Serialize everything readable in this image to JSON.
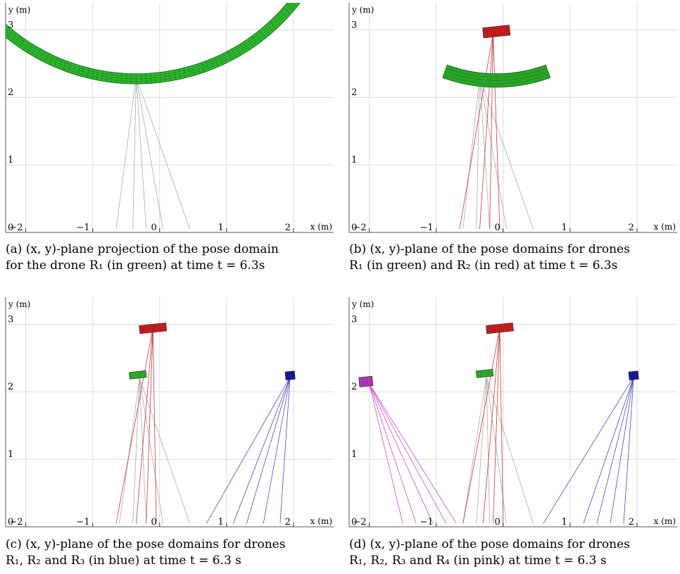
{
  "figure": {
    "panels": [
      {
        "id": "a",
        "caption_line1": "(a) (x, y)-plane projection of the pose domain",
        "caption_line2": "for the drone R₁ (in green) at time t = 6.3s"
      },
      {
        "id": "b",
        "caption_line1": "(b) (x, y)-plane of the pose domains for drones",
        "caption_line2": "R₁ (in green) and R₂ (in red) at time t = 6.3s"
      },
      {
        "id": "c",
        "caption_line1": "(c) (x, y)-plane of the pose domains for drones",
        "caption_line2": "R₁, R₂ and R₃ (in blue) at time t = 6.3 s"
      },
      {
        "id": "d",
        "caption_line1": "(d) (x, y)-plane of the pose domains for drones",
        "caption_line2": "R₁, R₂, R₃ and R₄ (in pink) at time t = 6.3 s"
      }
    ]
  },
  "chart_data": [
    {
      "type": "scatter",
      "panel": "a",
      "xlabel": "x (m)",
      "ylabel": "y (m)",
      "xlim": [
        -2.3,
        2.6
      ],
      "ylim": [
        0,
        3.4
      ],
      "x_ticks": [
        "−2",
        "−1",
        "0",
        "1",
        "2"
      ],
      "y_ticks": [
        "0",
        "1",
        "2",
        "3"
      ],
      "grid": true,
      "series": [
        {
          "name": "R1",
          "color": "#2fb82f",
          "shape": "arc",
          "center": [
            -0.35,
            5.3
          ],
          "radii": [
            2.95,
            3.1
          ],
          "angles_deg": [
            215,
            325
          ],
          "anchor": [
            -0.35,
            2.3
          ],
          "beam_targets": [
            [
              -0.65,
              0.05
            ],
            [
              -0.4,
              0.05
            ],
            [
              -0.2,
              0.05
            ],
            [
              0.05,
              0.05
            ],
            [
              0.45,
              0.05
            ]
          ],
          "beam_color": "#aaaaaa"
        }
      ]
    },
    {
      "type": "scatter",
      "panel": "b",
      "xlabel": "x (m)",
      "ylabel": "y (m)",
      "xlim": [
        -2.3,
        2.6
      ],
      "ylim": [
        0,
        3.4
      ],
      "x_ticks": [
        "−2",
        "−1",
        "0",
        "1",
        "2"
      ],
      "y_ticks": [
        "0",
        "1",
        "2",
        "3"
      ],
      "grid": true,
      "series": [
        {
          "name": "R1",
          "color": "#2fb82f",
          "shape": "arc",
          "center": [
            -0.1,
            4.5
          ],
          "radii": [
            2.15,
            2.35
          ],
          "angles_deg": [
            250,
            290
          ],
          "anchor": [
            -0.35,
            2.3
          ],
          "beam_targets": [
            [
              -0.6,
              0.05
            ],
            [
              -0.4,
              0.05
            ],
            [
              -0.2,
              0.05
            ],
            [
              0.05,
              0.05
            ],
            [
              0.45,
              0.05
            ]
          ],
          "beam_color": "#aaaaaa"
        },
        {
          "name": "R2",
          "color": "#d42020",
          "shape": "box",
          "x": [
            -0.3,
            0.1
          ],
          "y": [
            2.9,
            3.05
          ],
          "anchor": [
            -0.15,
            2.95
          ],
          "beam_targets": [
            [
              -0.65,
              0.05
            ],
            [
              -0.35,
              0.05
            ],
            [
              -0.2,
              0.05
            ],
            [
              -0.05,
              0.05
            ]
          ],
          "beam_color": "#c03a3a"
        }
      ]
    },
    {
      "type": "scatter",
      "panel": "c",
      "xlabel": "x (m)",
      "ylabel": "y (m)",
      "xlim": [
        -2.3,
        2.6
      ],
      "ylim": [
        0,
        3.4
      ],
      "x_ticks": [
        "−2",
        "−1",
        "0",
        "1",
        "2"
      ],
      "y_ticks": [
        "0",
        "1",
        "2",
        "3"
      ],
      "grid": true,
      "series": [
        {
          "name": "R1",
          "color": "#2fb82f",
          "shape": "box",
          "x": [
            -0.45,
            -0.2
          ],
          "y": [
            2.2,
            2.3
          ],
          "anchor": [
            -0.3,
            2.2
          ],
          "beam_targets": [
            [
              -0.6,
              0.05
            ],
            [
              -0.4,
              0.05
            ],
            [
              -0.2,
              0.05
            ],
            [
              0.05,
              0.05
            ],
            [
              0.45,
              0.05
            ]
          ],
          "beam_color": "#aaaaaa"
        },
        {
          "name": "R2",
          "color": "#d42020",
          "shape": "box",
          "x": [
            -0.3,
            0.1
          ],
          "y": [
            2.88,
            3.0
          ],
          "anchor": [
            -0.1,
            2.95
          ],
          "beam_targets": [
            [
              -0.65,
              0.05
            ],
            [
              -0.35,
              0.05
            ],
            [
              -0.2,
              0.05
            ],
            [
              -0.05,
              0.05
            ]
          ],
          "beam_color": "#c03a3a"
        },
        {
          "name": "R3",
          "color": "#1a1aa8",
          "shape": "box",
          "x": [
            1.88,
            2.02
          ],
          "y": [
            2.18,
            2.3
          ],
          "anchor": [
            1.95,
            2.22
          ],
          "beam_targets": [
            [
              0.7,
              0.05
            ],
            [
              1.1,
              0.05
            ],
            [
              1.3,
              0.05
            ],
            [
              1.55,
              0.05
            ],
            [
              1.8,
              0.05
            ]
          ],
          "beam_color": "#4a4ab5"
        }
      ]
    },
    {
      "type": "scatter",
      "panel": "d",
      "xlabel": "x (m)",
      "ylabel": "y (m)",
      "xlim": [
        -2.3,
        2.6
      ],
      "ylim": [
        0,
        3.4
      ],
      "x_ticks": [
        "−2",
        "−1",
        "0",
        "1",
        "2"
      ],
      "y_ticks": [
        "0",
        "1",
        "2",
        "3"
      ],
      "grid": true,
      "series": [
        {
          "name": "R1",
          "color": "#2fb82f",
          "shape": "box",
          "x": [
            -0.4,
            -0.15
          ],
          "y": [
            2.22,
            2.32
          ],
          "anchor": [
            -0.25,
            2.22
          ],
          "beam_targets": [
            [
              -0.6,
              0.05
            ],
            [
              -0.4,
              0.05
            ],
            [
              -0.2,
              0.05
            ],
            [
              0.05,
              0.05
            ],
            [
              0.45,
              0.05
            ]
          ],
          "beam_color": "#aaaaaa"
        },
        {
          "name": "R2",
          "color": "#d42020",
          "shape": "box",
          "x": [
            -0.25,
            0.15
          ],
          "y": [
            2.88,
            3.0
          ],
          "anchor": [
            -0.05,
            2.95
          ],
          "beam_targets": [
            [
              -0.6,
              0.05
            ],
            [
              -0.3,
              0.05
            ],
            [
              -0.15,
              0.05
            ],
            [
              0.0,
              0.05
            ]
          ],
          "beam_color": "#c03a3a"
        },
        {
          "name": "R3",
          "color": "#1a1aa8",
          "shape": "box",
          "x": [
            1.88,
            2.02
          ],
          "y": [
            2.18,
            2.3
          ],
          "anchor": [
            1.95,
            2.22
          ],
          "beam_targets": [
            [
              0.6,
              0.05
            ],
            [
              1.2,
              0.05
            ],
            [
              1.4,
              0.05
            ],
            [
              1.6,
              0.05
            ],
            [
              1.8,
              0.05
            ]
          ],
          "beam_color": "#4a4ab5"
        },
        {
          "name": "R4",
          "color": "#c03ac0",
          "shape": "box",
          "x": [
            -2.15,
            -1.95
          ],
          "y": [
            2.08,
            2.22
          ],
          "anchor": [
            -2.0,
            2.12
          ],
          "beam_targets": [
            [
              -1.5,
              0.05
            ],
            [
              -1.3,
              0.05
            ],
            [
              -1.05,
              0.05
            ],
            [
              -0.85,
              0.05
            ],
            [
              -0.7,
              0.05
            ]
          ],
          "beam_color": "#c94bc9"
        }
      ]
    }
  ]
}
